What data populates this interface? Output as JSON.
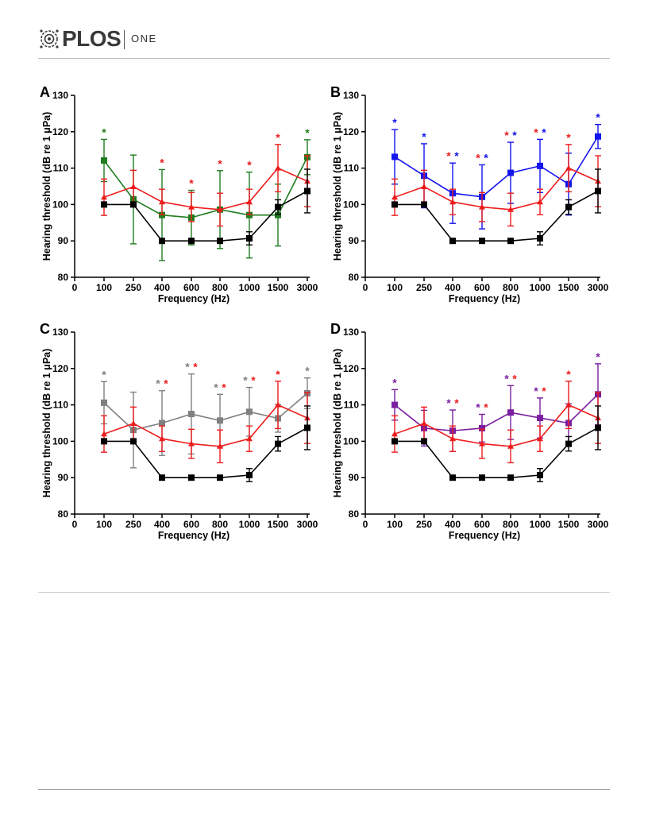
{
  "header": {
    "brand": "PLOS",
    "journal": "ONE"
  },
  "colors": {
    "black": "#000000",
    "red": "#ee1c1c",
    "green": "#1e7d1e",
    "blue": "#1414ee",
    "grey": "#808080",
    "purple": "#7a1fa0"
  },
  "chart_data": [
    {
      "panel": "A",
      "type": "line",
      "categories": [
        "100",
        "250",
        "400",
        "600",
        "800",
        "1000",
        "1500",
        "3000"
      ],
      "x_zero_label": "0",
      "xlabel": "Frequency (Hz)",
      "ylabel": "Hearing threshold (dB re 1 μPa)",
      "ylim": [
        80,
        130
      ],
      "yticks": [
        "80",
        "90",
        "100",
        "110",
        "120",
        "130"
      ],
      "series": [
        {
          "color": "black",
          "marker": "square",
          "values": [
            100,
            100,
            90,
            90,
            90,
            90.7,
            99.3,
            103.7
          ],
          "err": [
            0,
            0,
            0,
            0,
            0,
            1.8,
            2,
            6
          ]
        },
        {
          "color": "red",
          "marker": "triangle",
          "values": [
            102,
            104.9,
            100.7,
            99.3,
            98.6,
            100.7,
            110,
            106.4
          ],
          "err": [
            5,
            4.5,
            3.5,
            4,
            4.5,
            3.5,
            6.5,
            7
          ]
        },
        {
          "color": "green",
          "marker": "square",
          "values": [
            112.1,
            101.4,
            97.1,
            96.4,
            98.6,
            97.1,
            97.1,
            113
          ],
          "err": [
            5.8,
            12.2,
            12.5,
            7.5,
            10.7,
            11.8,
            8.5,
            4.8
          ]
        }
      ],
      "stars": [
        {
          "cat": "100",
          "label": "*",
          "color": "green"
        },
        {
          "cat": "400",
          "label": "*",
          "color": "red"
        },
        {
          "cat": "600",
          "label": "*",
          "color": "red"
        },
        {
          "cat": "800",
          "label": "*",
          "color": "red"
        },
        {
          "cat": "1000",
          "label": "*",
          "color": "red"
        },
        {
          "cat": "1500",
          "label": "*",
          "color": "red"
        },
        {
          "cat": "3000",
          "label": "*",
          "color": "green"
        }
      ]
    },
    {
      "panel": "B",
      "type": "line",
      "categories": [
        "100",
        "250",
        "400",
        "600",
        "800",
        "1000",
        "1500",
        "3000"
      ],
      "x_zero_label": "0",
      "xlabel": "Frequency (Hz)",
      "ylabel": "Hearing threshold (dB re 1 μPa)",
      "ylim": [
        80,
        130
      ],
      "yticks": [
        "80",
        "90",
        "100",
        "110",
        "120",
        "130"
      ],
      "series": [
        {
          "color": "black",
          "marker": "square",
          "values": [
            100,
            100,
            90,
            90,
            90,
            90.7,
            99.3,
            103.7
          ],
          "err": [
            0,
            0,
            0,
            0,
            0,
            1.8,
            2,
            6
          ]
        },
        {
          "color": "red",
          "marker": "triangle",
          "values": [
            102,
            104.9,
            100.7,
            99.3,
            98.6,
            100.7,
            110,
            106.4
          ],
          "err": [
            5,
            4.5,
            3.5,
            4,
            4.5,
            3.5,
            6.5,
            7
          ]
        },
        {
          "color": "blue",
          "marker": "square",
          "values": [
            113.1,
            107.9,
            103.1,
            102.1,
            108.7,
            110.6,
            105.6,
            118.7
          ],
          "err": [
            7.5,
            8.8,
            8.3,
            8.8,
            8.4,
            7.3,
            8.5,
            3.3
          ]
        }
      ],
      "stars": [
        {
          "cat": "100",
          "label": "*",
          "color": "blue"
        },
        {
          "cat": "250",
          "label": "*",
          "color": "blue"
        },
        {
          "cat": "400",
          "label": "*",
          "color": "red",
          "offset": -1
        },
        {
          "cat": "400",
          "label": "*",
          "color": "blue",
          "offset": 1
        },
        {
          "cat": "600",
          "label": "*",
          "color": "red",
          "offset": -1
        },
        {
          "cat": "600",
          "label": "*",
          "color": "blue",
          "offset": 1
        },
        {
          "cat": "800",
          "label": "*",
          "color": "red",
          "offset": -1
        },
        {
          "cat": "800",
          "label": "*",
          "color": "blue",
          "offset": 1
        },
        {
          "cat": "1000",
          "label": "*",
          "color": "red",
          "offset": -1
        },
        {
          "cat": "1000",
          "label": "*",
          "color": "blue",
          "offset": 1
        },
        {
          "cat": "1500",
          "label": "*",
          "color": "red"
        },
        {
          "cat": "3000",
          "label": "*",
          "color": "blue"
        }
      ]
    },
    {
      "panel": "C",
      "type": "line",
      "categories": [
        "100",
        "250",
        "400",
        "600",
        "800",
        "1000",
        "1500",
        "3000"
      ],
      "x_zero_label": "0",
      "xlabel": "Frequency (Hz)",
      "ylabel": "Hearing threshold (dB re 1 μPa)",
      "ylim": [
        80,
        130
      ],
      "yticks": [
        "80",
        "90",
        "100",
        "110",
        "120",
        "130"
      ],
      "series": [
        {
          "color": "black",
          "marker": "square",
          "values": [
            100,
            100,
            90,
            90,
            90,
            90.7,
            99.3,
            103.7
          ],
          "err": [
            0,
            0,
            0,
            0,
            0,
            1.8,
            2,
            6
          ]
        },
        {
          "color": "red",
          "marker": "triangle",
          "values": [
            102,
            104.9,
            100.7,
            99.3,
            98.6,
            100.7,
            110,
            106.4
          ],
          "err": [
            5,
            4.5,
            3.5,
            4,
            4.5,
            3.5,
            6.5,
            7
          ]
        },
        {
          "color": "grey",
          "marker": "square",
          "values": [
            110.6,
            103.1,
            105,
            107.5,
            105.7,
            108.1,
            106.3,
            113.2
          ],
          "err": [
            5.8,
            10.4,
            8.9,
            11,
            7.2,
            6.7,
            3.8,
            4.2
          ]
        }
      ],
      "stars": [
        {
          "cat": "100",
          "label": "*",
          "color": "grey"
        },
        {
          "cat": "400",
          "label": "*",
          "color": "grey",
          "offset": -1
        },
        {
          "cat": "400",
          "label": "*",
          "color": "red",
          "offset": 1
        },
        {
          "cat": "600",
          "label": "*",
          "color": "grey",
          "offset": -1
        },
        {
          "cat": "600",
          "label": "*",
          "color": "red",
          "offset": 1
        },
        {
          "cat": "800",
          "label": "*",
          "color": "grey",
          "offset": -1
        },
        {
          "cat": "800",
          "label": "*",
          "color": "red",
          "offset": 1
        },
        {
          "cat": "1000",
          "label": "*",
          "color": "grey",
          "offset": -1
        },
        {
          "cat": "1000",
          "label": "*",
          "color": "red",
          "offset": 1
        },
        {
          "cat": "1500",
          "label": "*",
          "color": "red"
        },
        {
          "cat": "3000",
          "label": "*",
          "color": "grey"
        }
      ]
    },
    {
      "panel": "D",
      "type": "line",
      "categories": [
        "100",
        "250",
        "400",
        "600",
        "800",
        "1000",
        "1500",
        "3000"
      ],
      "x_zero_label": "0",
      "xlabel": "Frequency (Hz)",
      "ylabel": "Hearing threshold (dB re 1 μPa)",
      "ylim": [
        80,
        130
      ],
      "yticks": [
        "80",
        "90",
        "100",
        "110",
        "120",
        "130"
      ],
      "series": [
        {
          "color": "black",
          "marker": "square",
          "values": [
            100,
            100,
            90,
            90,
            90,
            90.7,
            99.3,
            103.7
          ],
          "err": [
            0,
            0,
            0,
            0,
            0,
            1.8,
            2,
            6
          ]
        },
        {
          "color": "red",
          "marker": "triangle",
          "values": [
            102,
            104.9,
            100.7,
            99.3,
            98.6,
            100.7,
            110,
            106.4
          ],
          "err": [
            5,
            4.5,
            3.5,
            4,
            4.5,
            3.5,
            6.5,
            7
          ]
        },
        {
          "color": "purple",
          "marker": "square",
          "values": [
            110,
            103.6,
            102.9,
            103.6,
            107.9,
            106.4,
            105,
            112.9
          ],
          "err": [
            4.2,
            4.9,
            5.7,
            3.8,
            7.4,
            5.5,
            5.3,
            8.4
          ]
        }
      ],
      "stars": [
        {
          "cat": "100",
          "label": "*",
          "color": "purple"
        },
        {
          "cat": "400",
          "label": "*",
          "color": "purple",
          "offset": -1
        },
        {
          "cat": "400",
          "label": "*",
          "color": "red",
          "offset": 1
        },
        {
          "cat": "600",
          "label": "*",
          "color": "purple",
          "offset": -1
        },
        {
          "cat": "600",
          "label": "*",
          "color": "red",
          "offset": 1
        },
        {
          "cat": "800",
          "label": "*",
          "color": "purple",
          "offset": -1
        },
        {
          "cat": "800",
          "label": "*",
          "color": "red",
          "offset": 1
        },
        {
          "cat": "1000",
          "label": "*",
          "color": "purple",
          "offset": -1
        },
        {
          "cat": "1000",
          "label": "*",
          "color": "red",
          "offset": 1
        },
        {
          "cat": "1500",
          "label": "*",
          "color": "red"
        },
        {
          "cat": "3000",
          "label": "*",
          "color": "purple"
        }
      ]
    }
  ]
}
